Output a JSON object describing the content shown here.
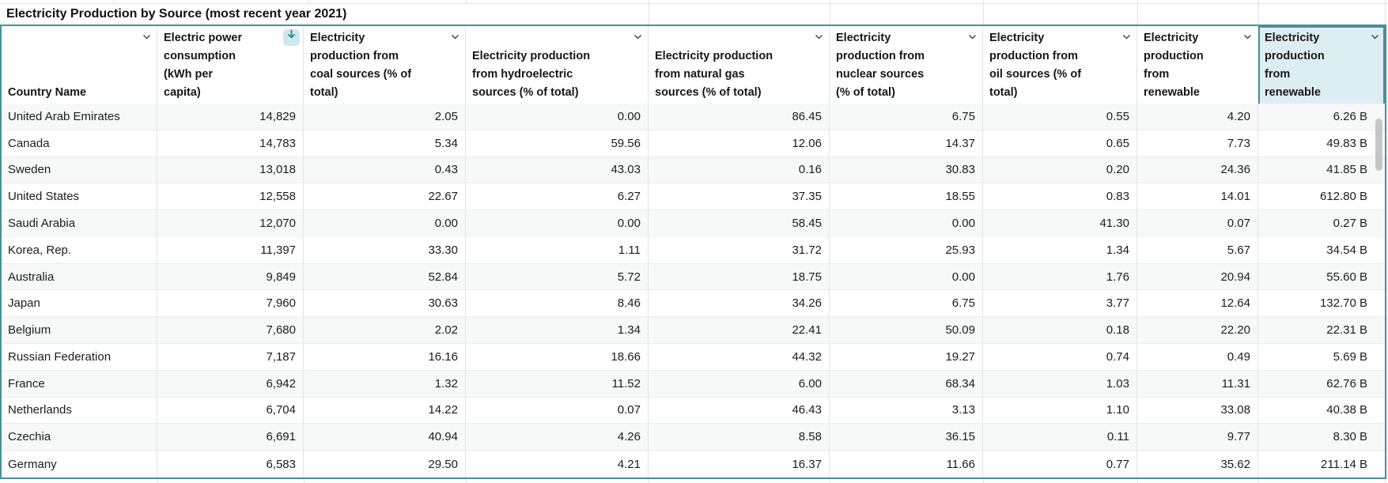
{
  "sheet_title": "Electricity Production by Source (most recent year 2021)",
  "table": {
    "columns": [
      {
        "label": "Country Name"
      },
      {
        "label": "Electric power consumption (kWh per capita)",
        "sorted": "descending"
      },
      {
        "label": "Electricity production from coal sources (% of total)"
      },
      {
        "label": "Electricity production from hydroelectric sources (% of total)"
      },
      {
        "label": "Electricity production from natural gas sources (% of total)"
      },
      {
        "label": "Electricity production from nuclear sources (% of total)"
      },
      {
        "label": "Electricity production from oil sources (% of total)"
      },
      {
        "label": "Electricity production from renewable"
      },
      {
        "label": "Electricity production from renewable",
        "selected": true
      }
    ],
    "rows": [
      {
        "country": "United Arab Emirates",
        "values": [
          "14,829",
          "2.05",
          "0.00",
          "86.45",
          "6.75",
          "0.55",
          "4.20",
          "6.26 B"
        ]
      },
      {
        "country": "Canada",
        "values": [
          "14,783",
          "5.34",
          "59.56",
          "12.06",
          "14.37",
          "0.65",
          "7.73",
          "49.83 B"
        ]
      },
      {
        "country": "Sweden",
        "values": [
          "13,018",
          "0.43",
          "43.03",
          "0.16",
          "30.83",
          "0.20",
          "24.36",
          "41.85 B"
        ]
      },
      {
        "country": "United States",
        "values": [
          "12,558",
          "22.67",
          "6.27",
          "37.35",
          "18.55",
          "0.83",
          "14.01",
          "612.80 B"
        ]
      },
      {
        "country": "Saudi Arabia",
        "values": [
          "12,070",
          "0.00",
          "0.00",
          "58.45",
          "0.00",
          "41.30",
          "0.07",
          "0.27 B"
        ]
      },
      {
        "country": "Korea, Rep.",
        "values": [
          "11,397",
          "33.30",
          "1.11",
          "31.72",
          "25.93",
          "1.34",
          "5.67",
          "34.54 B"
        ]
      },
      {
        "country": "Australia",
        "values": [
          "9,849",
          "52.84",
          "5.72",
          "18.75",
          "0.00",
          "1.76",
          "20.94",
          "55.60 B"
        ]
      },
      {
        "country": "Japan",
        "values": [
          "7,960",
          "30.63",
          "8.46",
          "34.26",
          "6.75",
          "3.77",
          "12.64",
          "132.70 B"
        ]
      },
      {
        "country": "Belgium",
        "values": [
          "7,680",
          "2.02",
          "1.34",
          "22.41",
          "50.09",
          "0.18",
          "22.20",
          "22.31 B"
        ]
      },
      {
        "country": "Russian Federation",
        "values": [
          "7,187",
          "16.16",
          "18.66",
          "44.32",
          "19.27",
          "0.74",
          "0.49",
          "5.69 B"
        ]
      },
      {
        "country": "France",
        "values": [
          "6,942",
          "1.32",
          "11.52",
          "6.00",
          "68.34",
          "1.03",
          "11.31",
          "62.76 B"
        ]
      },
      {
        "country": "Netherlands",
        "values": [
          "6,704",
          "14.22",
          "0.07",
          "46.43",
          "3.13",
          "1.10",
          "33.08",
          "40.38 B"
        ]
      },
      {
        "country": "Czechia",
        "values": [
          "6,691",
          "40.94",
          "4.26",
          "8.58",
          "36.15",
          "0.11",
          "9.77",
          "8.30 B"
        ]
      },
      {
        "country": "Germany",
        "values": [
          "6,583",
          "29.50",
          "4.21",
          "16.37",
          "11.66",
          "0.77",
          "35.62",
          "211.14 B"
        ]
      }
    ]
  },
  "icons": {
    "header_dropdown": "chevron-down",
    "sort_indicator": "arrow-down"
  },
  "colors": {
    "accent_teal": "#47909f",
    "selected_header_bg": "#ddeef3",
    "sort_badge_bg": "#cde9ef",
    "sort_arrow": "#2e7e90",
    "row_stripe": "#f7f8f8"
  },
  "scrollbar": {
    "visible": true
  }
}
